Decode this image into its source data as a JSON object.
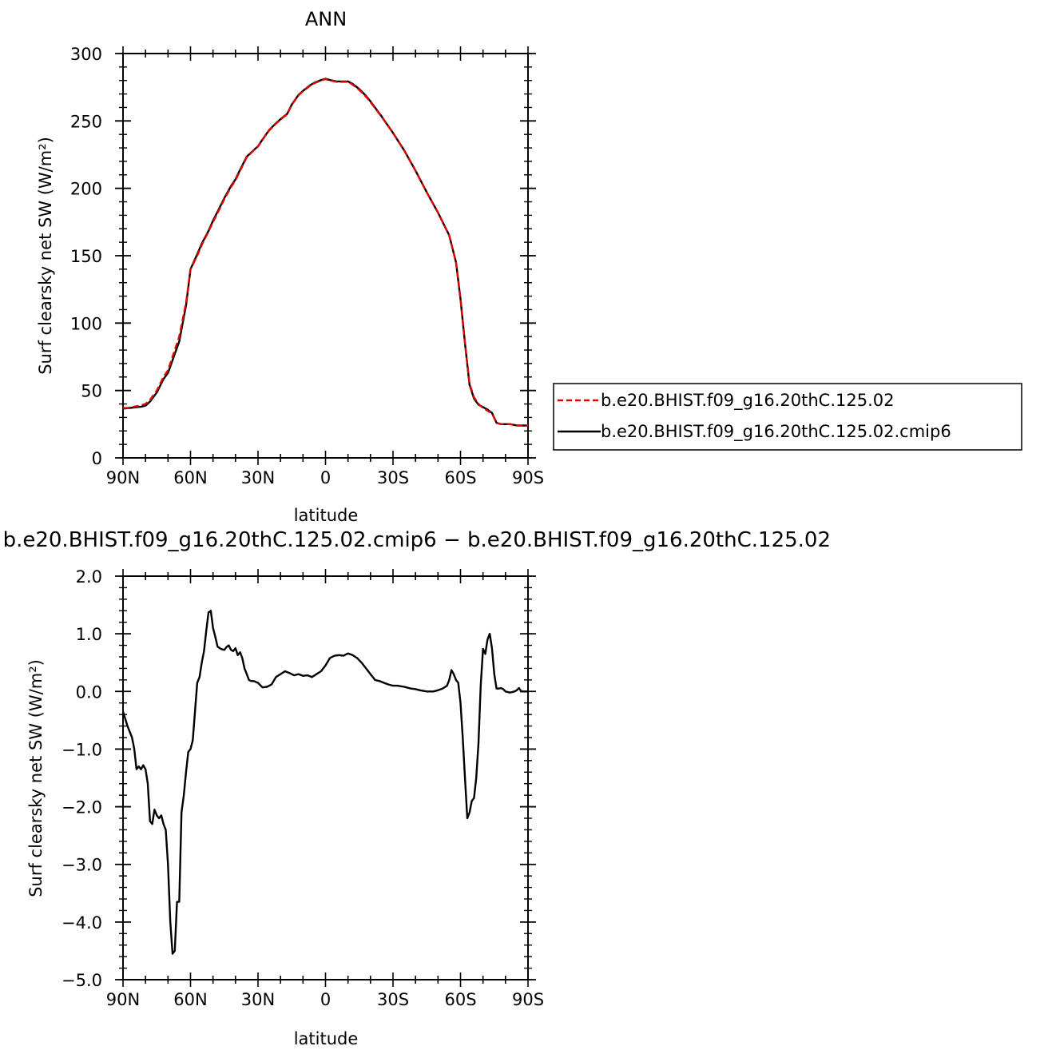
{
  "chart_data": [
    {
      "type": "line",
      "title": "ANN",
      "xlabel": "latitude",
      "ylabel": "Surf clearsky net SW (W/m²)",
      "xlim": [
        90,
        -90
      ],
      "ylim": [
        0,
        300
      ],
      "xticks": [
        {
          "value": 90,
          "label": "90N"
        },
        {
          "value": 60,
          "label": "60N"
        },
        {
          "value": 30,
          "label": "30N"
        },
        {
          "value": 0,
          "label": "0"
        },
        {
          "value": -30,
          "label": "30S"
        },
        {
          "value": -60,
          "label": "60S"
        },
        {
          "value": -90,
          "label": "90S"
        }
      ],
      "yticks": [
        {
          "value": 0,
          "label": "0"
        },
        {
          "value": 50,
          "label": "50"
        },
        {
          "value": 100,
          "label": "100"
        },
        {
          "value": 150,
          "label": "150"
        },
        {
          "value": 200,
          "label": "200"
        },
        {
          "value": 250,
          "label": "250"
        },
        {
          "value": 300,
          "label": "300"
        }
      ],
      "legend_position": "right",
      "series": [
        {
          "name": "b.e20.BHIST.f09_g16.20thC.125.02",
          "color": "#e00000",
          "dash": "dashed",
          "x": [
            90,
            88,
            85,
            82,
            80,
            78,
            75,
            72,
            70,
            67,
            65,
            62,
            60,
            57,
            55,
            52,
            50,
            47,
            45,
            42,
            40,
            38,
            35,
            32,
            30,
            28,
            25,
            22,
            20,
            17,
            15,
            12,
            10,
            7,
            5,
            2,
            0,
            -2,
            -5,
            -8,
            -10,
            -12,
            -15,
            -18,
            -20,
            -25,
            -30,
            -35,
            -40,
            -45,
            -50,
            -55,
            -58,
            -60,
            -62,
            -64,
            -66,
            -68,
            -70,
            -72,
            -74,
            -76,
            -78,
            -80,
            -82,
            -85,
            -88,
            -90
          ],
          "y": [
            37,
            37,
            38,
            39,
            40,
            43,
            50,
            60,
            65,
            80,
            90,
            115,
            140,
            150,
            158,
            168,
            175,
            185,
            192,
            201,
            206,
            213,
            223,
            228,
            231,
            236,
            243,
            248,
            251,
            255,
            262,
            269,
            272,
            276,
            278,
            280,
            281,
            280,
            279,
            279,
            279,
            277,
            273,
            268,
            264,
            253,
            241,
            228,
            213,
            197,
            182,
            165,
            145,
            118,
            85,
            55,
            45,
            40,
            37,
            35,
            33,
            26,
            25,
            25,
            25,
            24,
            24,
            24
          ]
        },
        {
          "name": "b.e20.BHIST.f09_g16.20thC.125.02.cmip6",
          "color": "#000000",
          "dash": "solid",
          "x": [
            90,
            88,
            85,
            82,
            80,
            78,
            75,
            72,
            70,
            67,
            65,
            62,
            60,
            57,
            55,
            52,
            50,
            47,
            45,
            42,
            40,
            38,
            35,
            32,
            30,
            28,
            25,
            22,
            20,
            17,
            15,
            12,
            10,
            7,
            5,
            2,
            0,
            -2,
            -5,
            -8,
            -10,
            -12,
            -15,
            -18,
            -20,
            -25,
            -30,
            -35,
            -40,
            -45,
            -50,
            -55,
            -58,
            -60,
            -62,
            -64,
            -66,
            -68,
            -70,
            -72,
            -74,
            -76,
            -78,
            -80,
            -82,
            -85,
            -88,
            -90
          ],
          "y": [
            36.6,
            36.9,
            37.4,
            38.0,
            38.7,
            41.8,
            48.5,
            58.5,
            63.0,
            77.2,
            86.4,
            113.1,
            140.0,
            151.0,
            159.0,
            168.4,
            176.0,
            185.8,
            192.7,
            201.7,
            206.7,
            213.7,
            223.5,
            228.2,
            231.2,
            236.2,
            243.3,
            248.3,
            251.3,
            255.3,
            262.2,
            269.3,
            272.3,
            276.3,
            278.3,
            280.3,
            281.3,
            280.3,
            279.3,
            279.3,
            279.3,
            277.6,
            273.6,
            268.6,
            264.5,
            253.2,
            241.1,
            228.1,
            213.1,
            197.0,
            182.0,
            165.1,
            145.0,
            118.0,
            85.0,
            54.3,
            44.0,
            39.5,
            37.7,
            35.8,
            33.4,
            26.0,
            25.0,
            25.0,
            25.0,
            24.1,
            24.0,
            24.0
          ]
        }
      ]
    },
    {
      "type": "line",
      "title": "b.e20.BHIST.f09_g16.20thC.125.02.cmip6 − b.e20.BHIST.f09_g16.20thC.125.02",
      "xlabel": "latitude",
      "ylabel": "Surf clearsky net SW (W/m²)",
      "xlim": [
        90,
        -90
      ],
      "ylim": [
        -5,
        2
      ],
      "xticks": [
        {
          "value": 90,
          "label": "90N"
        },
        {
          "value": 60,
          "label": "60N"
        },
        {
          "value": 30,
          "label": "30N"
        },
        {
          "value": 0,
          "label": "0"
        },
        {
          "value": -30,
          "label": "30S"
        },
        {
          "value": -60,
          "label": "60S"
        },
        {
          "value": -90,
          "label": "90S"
        }
      ],
      "yticks": [
        {
          "value": -5,
          "label": "−5.0"
        },
        {
          "value": -4,
          "label": "−4.0"
        },
        {
          "value": -3,
          "label": "−3.0"
        },
        {
          "value": -2,
          "label": "−2.0"
        },
        {
          "value": -1,
          "label": "−1.0"
        },
        {
          "value": 0,
          "label": "0.0"
        },
        {
          "value": 1,
          "label": "1.0"
        },
        {
          "value": 2,
          "label": "2.0"
        }
      ],
      "series": [
        {
          "name": "",
          "color": "#000000",
          "dash": "solid",
          "x": [
            90,
            88,
            86,
            85,
            84,
            83,
            82,
            81,
            80,
            79,
            78,
            77,
            76,
            75,
            74,
            73,
            72,
            71,
            70,
            69,
            68,
            67,
            66,
            65,
            64,
            63,
            62,
            61,
            60,
            59,
            58,
            57,
            56,
            55,
            54,
            53,
            52,
            51,
            50,
            49,
            48,
            47,
            46,
            45,
            44,
            43,
            42,
            41,
            40,
            39,
            38,
            37,
            36,
            35,
            34,
            33,
            32,
            30,
            28,
            26,
            25,
            24,
            22,
            20,
            18,
            16,
            14,
            12,
            10,
            8,
            6,
            4,
            2,
            0,
            -2,
            -4,
            -6,
            -8,
            -10,
            -12,
            -14,
            -16,
            -18,
            -20,
            -22,
            -24,
            -26,
            -28,
            -30,
            -32,
            -35,
            -38,
            -40,
            -42,
            -45,
            -48,
            -50,
            -52,
            -54,
            -55,
            -56,
            -57,
            -58,
            -59,
            -60,
            -61,
            -62,
            -63,
            -64,
            -65,
            -66,
            -67,
            -68,
            -69,
            -70,
            -71,
            -72,
            -73,
            -74,
            -75,
            -76,
            -77,
            -78,
            -79,
            -80,
            -82,
            -84,
            -85,
            -86,
            -87,
            -88,
            -90
          ],
          "y": [
            -0.35,
            -0.6,
            -0.8,
            -1.0,
            -1.35,
            -1.3,
            -1.35,
            -1.28,
            -1.35,
            -1.6,
            -2.25,
            -2.3,
            -2.05,
            -2.15,
            -2.2,
            -2.15,
            -2.3,
            -2.4,
            -3.0,
            -4.0,
            -4.55,
            -4.5,
            -3.65,
            -3.65,
            -2.1,
            -1.8,
            -1.4,
            -1.05,
            -1.0,
            -0.85,
            -0.35,
            0.15,
            0.25,
            0.5,
            0.7,
            1.05,
            1.37,
            1.4,
            1.1,
            0.95,
            0.78,
            0.75,
            0.73,
            0.72,
            0.77,
            0.8,
            0.72,
            0.7,
            0.75,
            0.63,
            0.68,
            0.58,
            0.4,
            0.3,
            0.2,
            0.18,
            0.18,
            0.15,
            0.07,
            0.08,
            0.1,
            0.12,
            0.25,
            0.3,
            0.35,
            0.32,
            0.28,
            0.3,
            0.27,
            0.28,
            0.25,
            0.3,
            0.35,
            0.45,
            0.58,
            0.62,
            0.63,
            0.62,
            0.66,
            0.63,
            0.58,
            0.5,
            0.4,
            0.3,
            0.2,
            0.18,
            0.15,
            0.12,
            0.1,
            0.1,
            0.08,
            0.05,
            0.04,
            0.02,
            0.0,
            0.0,
            0.02,
            0.05,
            0.1,
            0.2,
            0.37,
            0.3,
            0.2,
            0.15,
            -0.2,
            -0.8,
            -1.5,
            -2.2,
            -2.1,
            -1.9,
            -1.85,
            -1.5,
            -0.9,
            0.1,
            0.74,
            0.65,
            0.9,
            1.0,
            0.75,
            0.3,
            0.05,
            0.05,
            0.06,
            0.04,
            0.0,
            -0.02,
            0.0,
            0.02,
            0.06,
            0.0,
            0.0,
            0.0
          ]
        }
      ]
    }
  ]
}
